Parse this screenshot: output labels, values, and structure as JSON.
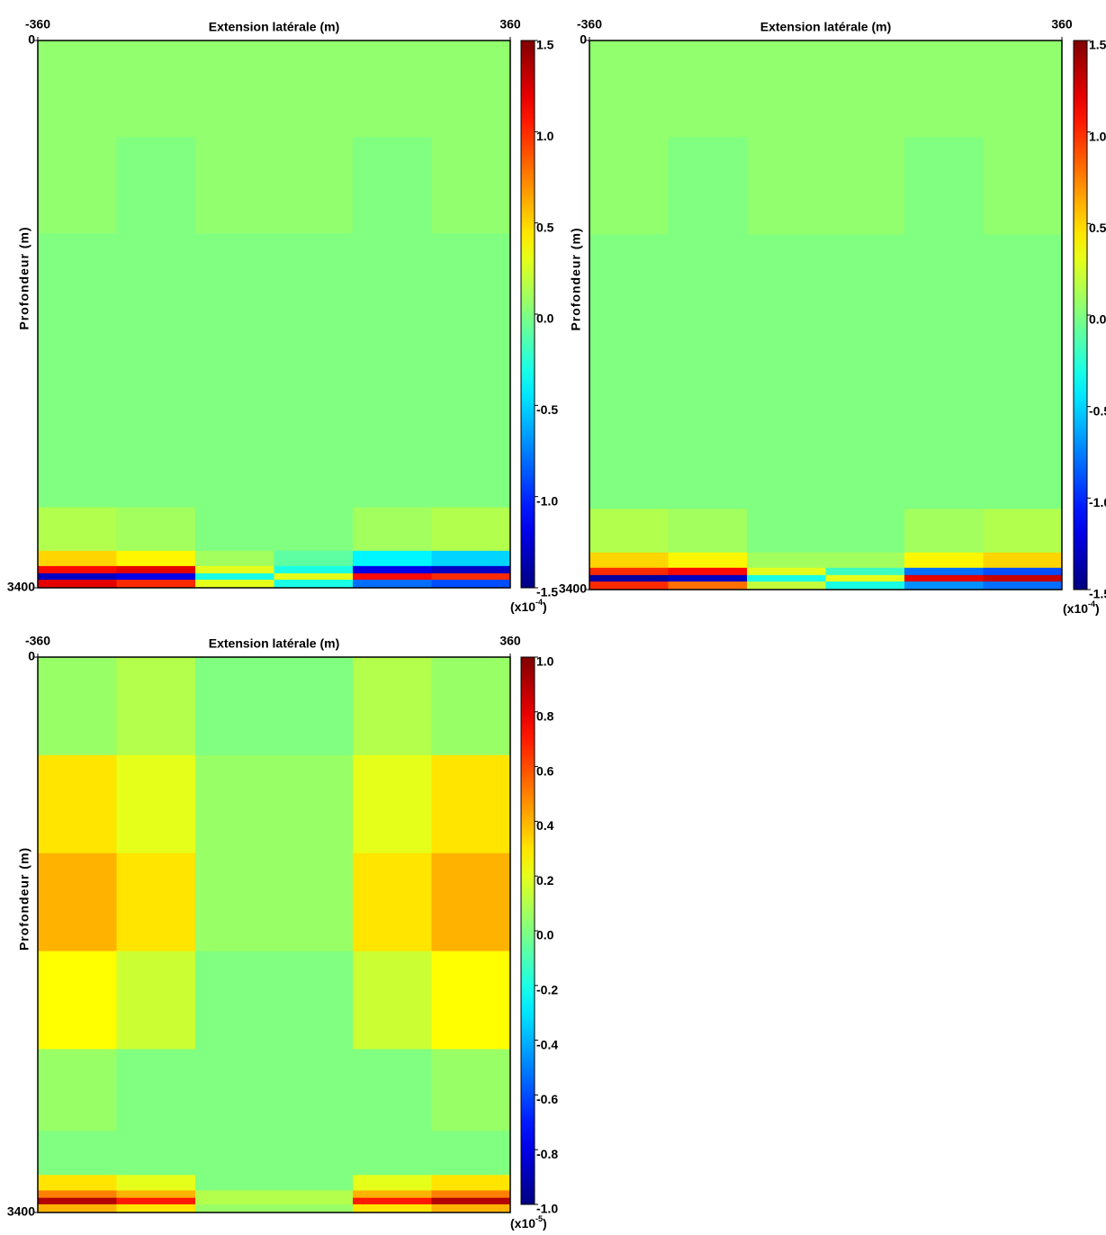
{
  "chart_data": [
    {
      "type": "heatmap",
      "title": "Extension latérale (m)",
      "ylabel": "Profondeur (m)",
      "colormap": "jet",
      "x": [
        -300,
        -180,
        -60,
        60,
        180,
        300
      ],
      "y": [
        300,
        900,
        1500,
        2100,
        2700,
        3100,
        3240,
        3290,
        3330,
        3370
      ],
      "xlim": [
        -360,
        360
      ],
      "xticks": [
        -360,
        360
      ],
      "ylim": [
        0,
        3400
      ],
      "yticks": [
        0,
        3400
      ],
      "y_reversed": true,
      "z": [
        [
          0.05,
          0.05,
          0.05,
          0.05,
          0.05,
          0.05
        ],
        [
          0.05,
          0,
          0.05,
          0.05,
          0,
          0.05
        ],
        [
          0,
          0,
          0,
          0,
          0,
          0
        ],
        [
          0,
          0,
          0,
          0,
          0,
          0
        ],
        [
          0,
          0,
          0,
          0,
          0,
          0
        ],
        [
          0.15,
          0.1,
          0,
          0,
          0.1,
          0.15
        ],
        [
          0.5,
          0.4,
          0.1,
          -0.1,
          -0.4,
          -0.5
        ],
        [
          1.1,
          1.2,
          0.3,
          -0.3,
          -1.2,
          -1.3
        ],
        [
          -1.3,
          -1.2,
          -0.3,
          0.3,
          1.1,
          1.0
        ],
        [
          1.2,
          1.0,
          0.3,
          -0.3,
          -0.8,
          -0.9
        ]
      ],
      "zlim": [
        -1.5,
        1.5
      ],
      "zticks": [
        1.5,
        {
          "value": 1,
          "label": "1.0"
        },
        0.5,
        {
          "value": 0,
          "label": "0.0"
        },
        -0.5,
        {
          "value": -1,
          "label": "-1.0"
        },
        -1.5
      ],
      "colorbar_unit": [
        "(x10",
        "-4",
        ")"
      ]
    },
    {
      "type": "heatmap",
      "title": "Extension latérale (m)",
      "ylabel": "Profondeur (m)",
      "colormap": "jet",
      "x": [
        -300,
        -180,
        -60,
        60,
        180,
        300
      ],
      "y": [
        300,
        900,
        1500,
        2100,
        2700,
        3100,
        3240,
        3290,
        3330,
        3370
      ],
      "xlim": [
        -360,
        360
      ],
      "xticks": [
        -360,
        360
      ],
      "ylim": [
        0,
        3400
      ],
      "yticks": [
        0,
        3400
      ],
      "y_reversed": true,
      "z": [
        [
          0.05,
          0.05,
          0.05,
          0.05,
          0.05,
          0.05
        ],
        [
          0.05,
          0,
          0.05,
          0.05,
          0,
          0.05
        ],
        [
          0,
          0,
          0,
          0,
          0,
          0
        ],
        [
          0,
          0,
          0,
          0,
          0,
          0
        ],
        [
          0,
          0,
          0,
          0,
          0,
          0
        ],
        [
          0.15,
          0.1,
          0,
          0,
          0.1,
          0.15
        ],
        [
          0.5,
          0.4,
          0.1,
          0.1,
          0.4,
          0.5
        ],
        [
          1.0,
          1.1,
          0.3,
          -0.2,
          -0.8,
          -0.9
        ],
        [
          -1.4,
          -1.3,
          -0.3,
          0.3,
          1.2,
          1.3
        ],
        [
          1.0,
          0.8,
          0.2,
          -0.3,
          -0.7,
          -0.8
        ]
      ],
      "zlim": [
        -1.5,
        1.5
      ],
      "zticks": [
        1.5,
        {
          "value": 1,
          "label": "1.0"
        },
        0.5,
        {
          "value": 0,
          "label": "0.0"
        },
        -0.5,
        {
          "value": -1,
          "label": "-1.0"
        },
        -1.5
      ],
      "colorbar_unit": [
        "(x10",
        "-4",
        ")"
      ]
    },
    {
      "type": "heatmap",
      "title": "Extension latérale (m)",
      "ylabel": "Profondeur (m)",
      "colormap": "jet",
      "x": [
        -300,
        -180,
        -60,
        60,
        180,
        300
      ],
      "y": [
        300,
        900,
        1500,
        2100,
        2700,
        3100,
        3240,
        3290,
        3330,
        3370
      ],
      "xlim": [
        -360,
        360
      ],
      "xticks": [
        -360,
        360
      ],
      "ylim": [
        0,
        3400
      ],
      "yticks": [
        0,
        3400
      ],
      "y_reversed": true,
      "z": [
        [
          0.05,
          0.1,
          0,
          0,
          0.1,
          0.05
        ],
        [
          0.3,
          0.2,
          0.05,
          0.05,
          0.2,
          0.3
        ],
        [
          0.4,
          0.3,
          0.05,
          0.05,
          0.3,
          0.4
        ],
        [
          0.25,
          0.15,
          0,
          0,
          0.15,
          0.25
        ],
        [
          0.05,
          0,
          0,
          0,
          0,
          0.05
        ],
        [
          0,
          0,
          0,
          0,
          0,
          0
        ],
        [
          0.3,
          0.2,
          0,
          0,
          0.2,
          0.3
        ],
        [
          0.5,
          0.4,
          0.1,
          0.1,
          0.4,
          0.5
        ],
        [
          0.9,
          0.7,
          0.1,
          0.1,
          0.7,
          0.9
        ],
        [
          0.4,
          0.3,
          0.05,
          0.05,
          0.3,
          0.4
        ]
      ],
      "zlim": [
        -1,
        1
      ],
      "zticks": [
        {
          "value": 1,
          "label": "1.0"
        },
        0.8,
        0.6,
        0.4,
        0.2,
        {
          "value": 0,
          "label": "0.0"
        },
        -0.2,
        -0.4,
        -0.6,
        -0.8,
        {
          "value": -1,
          "label": "-1.0"
        }
      ],
      "colorbar_unit": [
        "(x10",
        "-5",
        ")"
      ]
    }
  ]
}
